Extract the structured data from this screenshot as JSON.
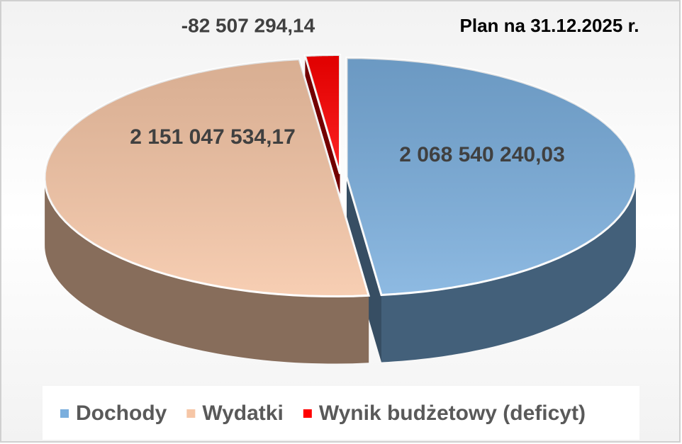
{
  "chart_data": {
    "type": "pie",
    "title": "Plan na 31.12.2025 r.",
    "categories": [
      "Dochody",
      "Wydatki",
      "Wynik budżetowy (deficyt)"
    ],
    "values": [
      2068540240.03,
      2151047534.17,
      -82507294.14
    ],
    "value_labels": [
      "2 068 540 240,03",
      "2 151 047 534,17",
      "-82 507 294,14"
    ],
    "colors": [
      "#7aaedd",
      "#f6c6a6",
      "#ff0000"
    ],
    "legend": "bottom"
  }
}
